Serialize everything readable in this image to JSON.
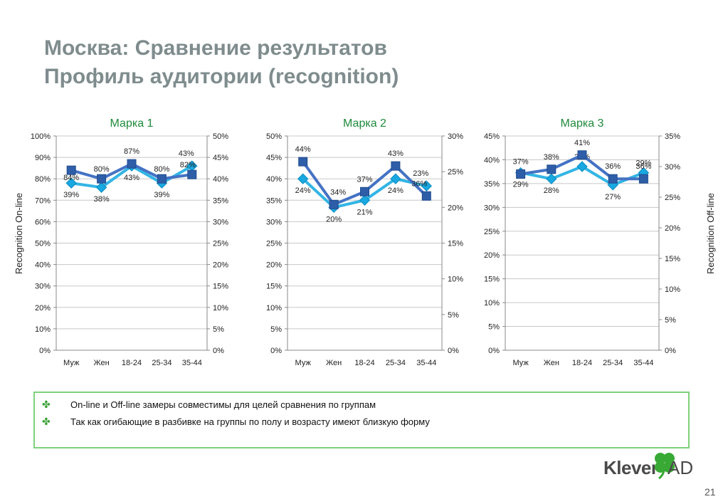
{
  "slide": {
    "title_line1": "Москва: Сравнение результатов",
    "title_line2": "Профиль аудитории (recognition)",
    "page_number": "21",
    "logo_text": "Klever",
    "logo_suffix": "AD"
  },
  "axis_titles": {
    "left": "Recognition On-line",
    "right": "Recognition Off-line"
  },
  "notes": [
    "On-line и Off-line замеры совместимы для целей сравнения по группам",
    "Так как огибающие в разбивке на группы по полу и возрасту имеют близкую форму"
  ],
  "colors": {
    "online_line": "#4472c4",
    "online_marker": "#2f5ea8",
    "offline_line": "#33b5e5",
    "offline_marker": "#19a8e0",
    "title": "#7f8c8d",
    "chart_title": "#1f8a3a",
    "accent_border": "#7ed07a"
  },
  "chart_data": [
    {
      "type": "line",
      "title": "Марка 1",
      "categories": [
        "Муж",
        "Жен",
        "18-24",
        "25-34",
        "35-44"
      ],
      "left_axis": {
        "ylim": [
          0,
          100
        ],
        "ticks": [
          "0%",
          "10%",
          "20%",
          "30%",
          "40%",
          "50%",
          "60%",
          "70%",
          "80%",
          "90%",
          "100%"
        ]
      },
      "right_axis": {
        "ylim": [
          0,
          50
        ],
        "ticks": [
          "0%",
          "5%",
          "10%",
          "15%",
          "20%",
          "25%",
          "30%",
          "35%",
          "40%",
          "45%",
          "50%"
        ]
      },
      "series": [
        {
          "axis": "left",
          "values": [
            84,
            80,
            87,
            80,
            82
          ],
          "labels": [
            "84%",
            "80%",
            "87%",
            "80%",
            "82%"
          ]
        },
        {
          "axis": "right",
          "values": [
            39,
            38,
            43,
            39,
            43
          ],
          "labels": [
            "39%",
            "38%",
            "43%",
            "39%",
            "43%"
          ]
        }
      ],
      "grid": true
    },
    {
      "type": "line",
      "title": "Марка 2",
      "categories": [
        "Муж",
        "Жен",
        "18-24",
        "25-34",
        "35-44"
      ],
      "left_axis": {
        "ylim": [
          0,
          50
        ],
        "ticks": [
          "0%",
          "5%",
          "10%",
          "15%",
          "20%",
          "25%",
          "30%",
          "35%",
          "40%",
          "45%",
          "50%"
        ]
      },
      "right_axis": {
        "ylim": [
          0,
          30
        ],
        "ticks": [
          "0%",
          "5%",
          "10%",
          "15%",
          "20%",
          "25%",
          "30%"
        ]
      },
      "series": [
        {
          "axis": "left",
          "values": [
            44,
            34,
            37,
            43,
            36
          ],
          "labels": [
            "44%",
            "34%",
            "37%",
            "43%",
            "36%"
          ]
        },
        {
          "axis": "right",
          "values": [
            24,
            20,
            21,
            24,
            23
          ],
          "labels": [
            "24%",
            "20%",
            "21%",
            "24%",
            "23%"
          ]
        }
      ],
      "grid": true
    },
    {
      "type": "line",
      "title": "Марка 3",
      "categories": [
        "Муж",
        "Жен",
        "18-24",
        "25-34",
        "35-44"
      ],
      "left_axis": {
        "ylim": [
          0,
          45
        ],
        "ticks": [
          "0%",
          "5%",
          "10%",
          "15%",
          "20%",
          "25%",
          "30%",
          "35%",
          "40%",
          "45%"
        ]
      },
      "right_axis": {
        "ylim": [
          0,
          35
        ],
        "ticks": [
          "0%",
          "5%",
          "10%",
          "15%",
          "20%",
          "25%",
          "30%",
          "35%"
        ]
      },
      "series": [
        {
          "axis": "left",
          "values": [
            37,
            38,
            41,
            36,
            36
          ],
          "labels": [
            "37%",
            "38%",
            "41%",
            "36%",
            "36%"
          ]
        },
        {
          "axis": "right",
          "values": [
            29,
            28,
            30,
            27,
            29
          ],
          "labels": [
            "29%",
            "28%",
            "30%",
            "27%",
            "29%"
          ]
        }
      ],
      "grid": true
    }
  ]
}
